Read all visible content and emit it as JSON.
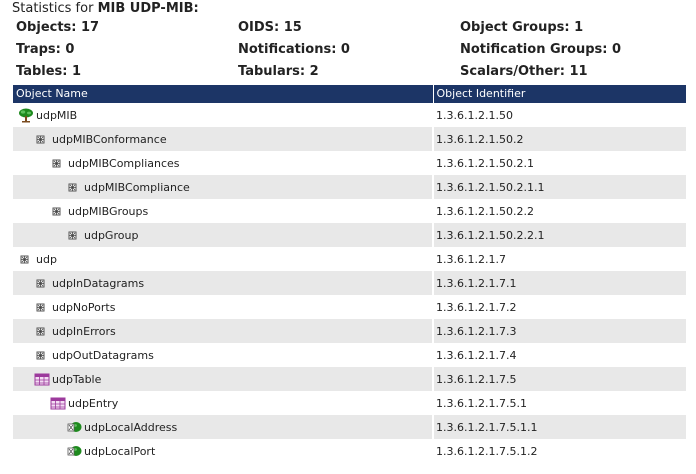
{
  "heading": {
    "prefix": "Statistics for",
    "mib": "MIB UDP-MIB:"
  },
  "stats": [
    {
      "label": "Objects: 17"
    },
    {
      "label": "OIDS: 15"
    },
    {
      "label": "Object Groups: 1"
    },
    {
      "label": "Traps: 0"
    },
    {
      "label": "Notifications: 0"
    },
    {
      "label": "Notification Groups: 0"
    },
    {
      "label": "Tables: 1"
    },
    {
      "label": "Tabulars: 2"
    },
    {
      "label": "Scalars/Other: 11"
    }
  ],
  "table": {
    "headers": [
      "Object Name",
      "Object Identifier"
    ],
    "rows": [
      {
        "name": "udpMIB",
        "oid": "1.3.6.1.2.1.50",
        "icon": "tree-icon",
        "depth": 0
      },
      {
        "name": "udpMIBConformance",
        "oid": "1.3.6.1.2.1.50.2",
        "icon": "node-icon",
        "depth": 1
      },
      {
        "name": "udpMIBCompliances",
        "oid": "1.3.6.1.2.1.50.2.1",
        "icon": "node-icon",
        "depth": 2
      },
      {
        "name": "udpMIBCompliance",
        "oid": "1.3.6.1.2.1.50.2.1.1",
        "icon": "node-icon",
        "depth": 3
      },
      {
        "name": "udpMIBGroups",
        "oid": "1.3.6.1.2.1.50.2.2",
        "icon": "node-icon",
        "depth": 2
      },
      {
        "name": "udpGroup",
        "oid": "1.3.6.1.2.1.50.2.2.1",
        "icon": "node-icon",
        "depth": 3
      },
      {
        "name": "udp",
        "oid": "1.3.6.1.2.1.7",
        "icon": "node-icon",
        "depth": 0
      },
      {
        "name": "udpInDatagrams",
        "oid": "1.3.6.1.2.1.7.1",
        "icon": "node-icon",
        "depth": 1
      },
      {
        "name": "udpNoPorts",
        "oid": "1.3.6.1.2.1.7.2",
        "icon": "node-icon",
        "depth": 1
      },
      {
        "name": "udpInErrors",
        "oid": "1.3.6.1.2.1.7.3",
        "icon": "node-icon",
        "depth": 1
      },
      {
        "name": "udpOutDatagrams",
        "oid": "1.3.6.1.2.1.7.4",
        "icon": "node-icon",
        "depth": 1
      },
      {
        "name": "udpTable",
        "oid": "1.3.6.1.2.1.7.5",
        "icon": "table-icon",
        "depth": 1
      },
      {
        "name": "udpEntry",
        "oid": "1.3.6.1.2.1.7.5.1",
        "icon": "table-icon",
        "depth": 2
      },
      {
        "name": "udpLocalAddress",
        "oid": "1.3.6.1.2.1.7.5.1.1",
        "icon": "leaf-icon",
        "depth": 3
      },
      {
        "name": "udpLocalPort",
        "oid": "1.3.6.1.2.1.7.5.1.2",
        "icon": "leaf-icon",
        "depth": 3
      }
    ]
  },
  "colors": {
    "header_bg": "#1c3566",
    "row_alt": "#e8e8e8",
    "tree_green": "#1e8a1e",
    "table_purple": "#9c3a9c"
  }
}
